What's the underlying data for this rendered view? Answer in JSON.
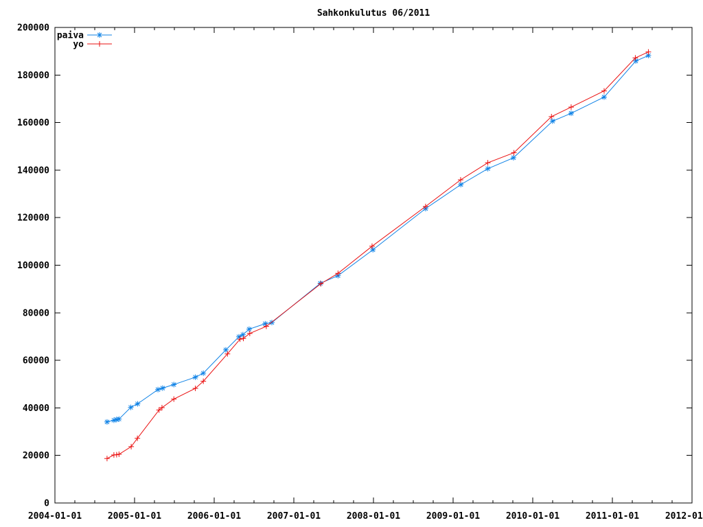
{
  "title": "Sahkonkulutus 06/2011",
  "colors": {
    "background": "#ffffff",
    "axis": "#000000",
    "paiva": "#0e82e6",
    "yo": "#ea0f0f"
  },
  "legend": {
    "position": "top-left",
    "entries": [
      {
        "label": "paiva",
        "marker": "asterisk",
        "color_key": "paiva"
      },
      {
        "label": "yo",
        "marker": "plus",
        "color_key": "yo"
      }
    ]
  },
  "axes": {
    "x": {
      "tick_labels": [
        "2004-01-01",
        "2005-01-01",
        "2006-01-01",
        "2007-01-01",
        "2008-01-01",
        "2009-01-01",
        "2010-01-01",
        "2011-01-01",
        "2012-01-01"
      ],
      "minor_ticks_per_interval": 3
    },
    "y": {
      "tick_values": [
        0,
        20000,
        40000,
        60000,
        80000,
        100000,
        120000,
        140000,
        160000,
        180000,
        200000
      ]
    }
  },
  "chart_data": {
    "type": "line",
    "title": "Sahkonkulutus 06/2011",
    "xlabel": "",
    "ylabel": "",
    "x_range": [
      "2004-01-01",
      "2012-01-01"
    ],
    "ylim": [
      0,
      200000
    ],
    "grid": false,
    "legend_position": "top-left",
    "series": [
      {
        "name": "paiva",
        "color": "#0e82e6",
        "marker": "asterisk",
        "points": [
          [
            "2004-08-27",
            34100
          ],
          [
            "2004-09-28",
            34800
          ],
          [
            "2004-10-10",
            35100
          ],
          [
            "2004-10-21",
            35300
          ],
          [
            "2004-12-14",
            40200
          ],
          [
            "2005-01-15",
            41700
          ],
          [
            "2005-04-17",
            47700
          ],
          [
            "2005-05-08",
            48300
          ],
          [
            "2005-06-29",
            49800
          ],
          [
            "2005-10-06",
            52900
          ],
          [
            "2005-11-12",
            54600
          ],
          [
            "2006-02-24",
            64400
          ],
          [
            "2006-04-23",
            69900
          ],
          [
            "2006-05-11",
            70800
          ],
          [
            "2006-06-09",
            73100
          ],
          [
            "2006-08-22",
            75400
          ],
          [
            "2006-09-22",
            75900
          ],
          [
            "2007-05-01",
            92400
          ],
          [
            "2007-07-21",
            95600
          ],
          [
            "2007-12-29",
            106500
          ],
          [
            "2008-08-27",
            123800
          ],
          [
            "2009-02-06",
            133900
          ],
          [
            "2009-06-08",
            140600
          ],
          [
            "2009-10-04",
            145200
          ],
          [
            "2010-03-31",
            160600
          ],
          [
            "2010-06-25",
            163900
          ],
          [
            "2010-11-24",
            170700
          ],
          [
            "2011-04-17",
            185900
          ],
          [
            "2011-06-14",
            188200
          ]
        ]
      },
      {
        "name": "yo",
        "color": "#ea0f0f",
        "marker": "plus",
        "points": [
          [
            "2004-08-27",
            18700
          ],
          [
            "2004-09-28",
            20200
          ],
          [
            "2004-10-10",
            20300
          ],
          [
            "2004-10-21",
            20500
          ],
          [
            "2004-12-16",
            23700
          ],
          [
            "2005-01-14",
            27200
          ],
          [
            "2005-04-22",
            39100
          ],
          [
            "2005-05-05",
            40100
          ],
          [
            "2005-06-29",
            43700
          ],
          [
            "2005-10-06",
            48200
          ],
          [
            "2005-11-12",
            51200
          ],
          [
            "2006-03-01",
            62700
          ],
          [
            "2006-04-28",
            68900
          ],
          [
            "2006-05-13",
            69200
          ],
          [
            "2006-06-12",
            71300
          ],
          [
            "2006-08-27",
            74300
          ],
          [
            "2007-05-03",
            92200
          ],
          [
            "2007-07-21",
            96600
          ],
          [
            "2007-12-25",
            108000
          ],
          [
            "2008-08-27",
            124700
          ],
          [
            "2009-02-05",
            135900
          ],
          [
            "2009-06-08",
            143100
          ],
          [
            "2009-10-06",
            147300
          ],
          [
            "2010-03-26",
            162500
          ],
          [
            "2010-06-25",
            166500
          ],
          [
            "2010-11-24",
            173300
          ],
          [
            "2011-04-15",
            187200
          ],
          [
            "2011-06-14",
            189700
          ]
        ]
      }
    ]
  }
}
